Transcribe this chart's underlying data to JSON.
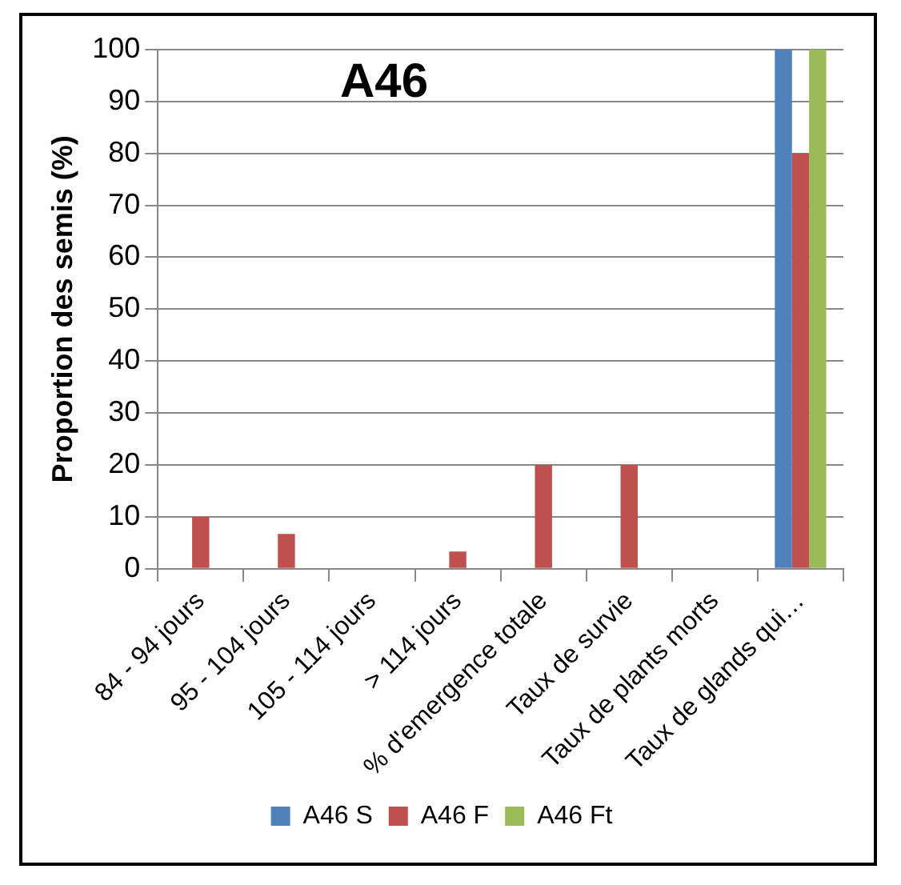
{
  "chart_data": {
    "type": "bar",
    "title": "A46",
    "ylabel": "Proportion des semis (%)",
    "categories": [
      "84 - 94 jours",
      "95 - 104 jours",
      "105 - 114 jours",
      "> 114 jours",
      "% d'emergence totale",
      "Taux de survie",
      "Taux de plants morts",
      "Taux de glands qui…"
    ],
    "series": [
      {
        "name": "A46 S",
        "color": "#4f81bd",
        "values": [
          0,
          0,
          0,
          0,
          0,
          0,
          0,
          100
        ]
      },
      {
        "name": "A46 F",
        "color": "#c0504d",
        "values": [
          10,
          6.7,
          0,
          3.3,
          20,
          20,
          0,
          80
        ]
      },
      {
        "name": "A46 Ft",
        "color": "#9bbb59",
        "values": [
          0,
          0,
          0,
          0,
          0,
          0,
          0,
          100
        ]
      }
    ],
    "ylim": [
      0,
      100
    ],
    "yticks": [
      0,
      10,
      20,
      30,
      40,
      50,
      60,
      70,
      80,
      90,
      100
    ],
    "grid": "y",
    "legend": "bottom"
  }
}
